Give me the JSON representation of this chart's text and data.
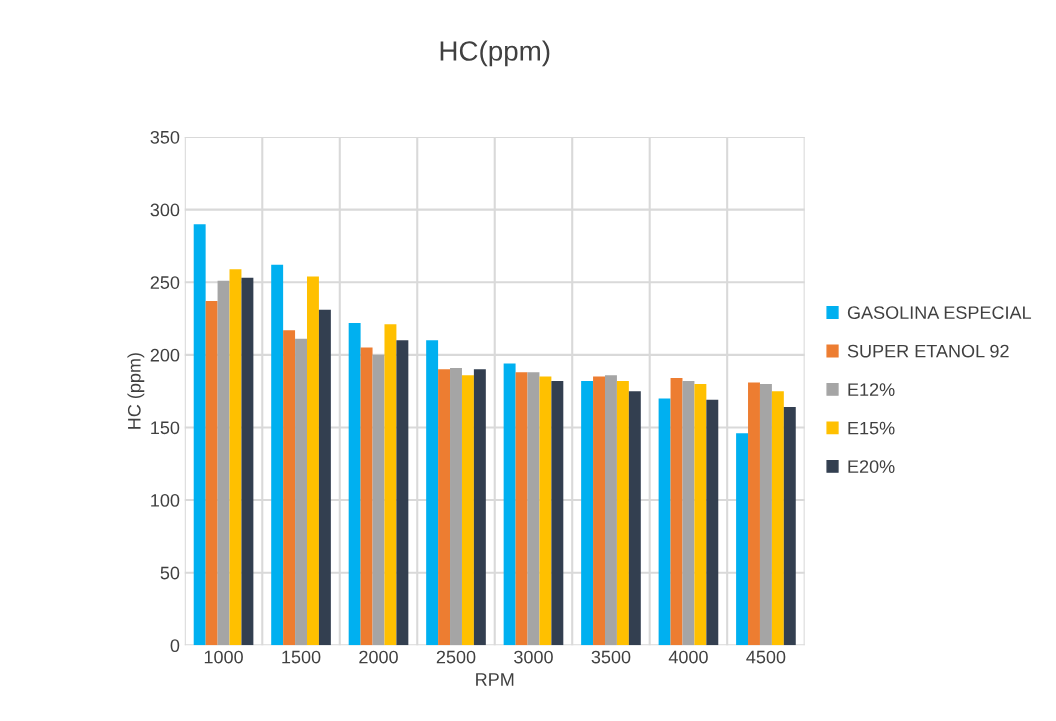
{
  "chart_data": {
    "type": "bar",
    "title": "HC(ppm)",
    "xlabel": "RPM",
    "ylabel": "HC (ppm)",
    "categories": [
      "1000",
      "1500",
      "2000",
      "2500",
      "3000",
      "3500",
      "4000",
      "4500"
    ],
    "series": [
      {
        "name": "GASOLINA ESPECIAL",
        "color": "#00b0f0",
        "values": [
          290,
          262,
          222,
          210,
          194,
          182,
          170,
          146
        ]
      },
      {
        "name": "SUPER ETANOL 92",
        "color": "#ed7d31",
        "values": [
          237,
          217,
          205,
          190,
          188,
          185,
          184,
          181
        ]
      },
      {
        "name": "E12%",
        "color": "#a5a5a5",
        "values": [
          251,
          211,
          200,
          191,
          188,
          186,
          182,
          180
        ]
      },
      {
        "name": "E15%",
        "color": "#ffc000",
        "values": [
          259,
          254,
          221,
          186,
          185,
          182,
          180,
          175
        ]
      },
      {
        "name": "E20%",
        "color": "#333f50",
        "values": [
          253,
          231,
          210,
          190,
          182,
          175,
          169,
          164
        ]
      }
    ],
    "ylim": [
      0,
      350
    ],
    "yticks": [
      0,
      50,
      100,
      150,
      200,
      250,
      300,
      350
    ],
    "grid": true,
    "legend": "right"
  }
}
